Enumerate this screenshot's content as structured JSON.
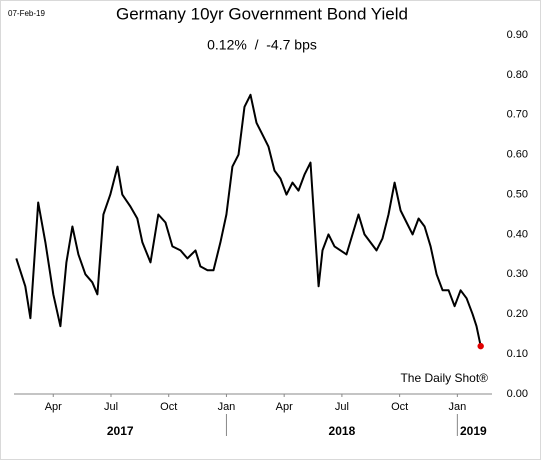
{
  "chart_data": {
    "type": "line",
    "date_stamp": "07-Feb-19",
    "title": "Germany 10yr Government Bond Yield",
    "subtitle": "0.12%  /  -4.7 bps",
    "source": "The Daily Shot®",
    "x": [
      2017.09,
      2017.129,
      2017.151,
      2017.185,
      2017.216,
      2017.237,
      2017.25,
      2017.281,
      2017.307,
      2017.333,
      2017.359,
      2017.389,
      2017.419,
      2017.441,
      2017.467,
      2017.497,
      2017.528,
      2017.549,
      2017.584,
      2017.614,
      2017.636,
      2017.671,
      2017.705,
      2017.736,
      2017.766,
      2017.801,
      2017.831,
      2017.866,
      2017.887,
      2017.918,
      2017.944,
      2017.974,
      2018.0,
      2018.026,
      2018.052,
      2018.078,
      2018.104,
      2018.13,
      2018.156,
      2018.182,
      2018.208,
      2018.234,
      2018.26,
      2018.286,
      2018.312,
      2018.338,
      2018.364,
      2018.39,
      2018.399,
      2018.416,
      2018.442,
      2018.468,
      2018.494,
      2018.52,
      2018.546,
      2018.572,
      2018.598,
      2018.624,
      2018.65,
      2018.676,
      2018.702,
      2018.728,
      2018.754,
      2018.78,
      2018.806,
      2018.832,
      2018.858,
      2018.884,
      2018.91,
      2018.936,
      2018.962,
      2018.988,
      2019.014,
      2019.04,
      2019.066,
      2019.083,
      2019.101
    ],
    "series": [
      {
        "name": "Germany 10yr",
        "color": "#000000",
        "last_point_color": "#e00000",
        "values": [
          0.34,
          0.27,
          0.19,
          0.48,
          0.38,
          0.3,
          0.25,
          0.17,
          0.33,
          0.42,
          0.35,
          0.3,
          0.28,
          0.25,
          0.45,
          0.5,
          0.57,
          0.5,
          0.47,
          0.44,
          0.38,
          0.33,
          0.45,
          0.43,
          0.37,
          0.36,
          0.34,
          0.36,
          0.32,
          0.31,
          0.31,
          0.38,
          0.45,
          0.57,
          0.6,
          0.72,
          0.75,
          0.68,
          0.65,
          0.62,
          0.56,
          0.54,
          0.5,
          0.53,
          0.51,
          0.55,
          0.58,
          0.35,
          0.27,
          0.36,
          0.4,
          0.37,
          0.36,
          0.35,
          0.4,
          0.45,
          0.4,
          0.38,
          0.36,
          0.39,
          0.45,
          0.53,
          0.46,
          0.43,
          0.4,
          0.44,
          0.42,
          0.37,
          0.3,
          0.26,
          0.26,
          0.22,
          0.26,
          0.24,
          0.2,
          0.17,
          0.12
        ]
      }
    ],
    "xlim": [
      2017.08,
      2019.15
    ],
    "xticks": [
      {
        "value": 2017.25,
        "label": "Apr"
      },
      {
        "value": 2017.5,
        "label": "Jul"
      },
      {
        "value": 2017.75,
        "label": "Oct"
      },
      {
        "value": 2018,
        "label": "Jan"
      },
      {
        "value": 2018.25,
        "label": "Apr"
      },
      {
        "value": 2018.5,
        "label": "Jul"
      },
      {
        "value": 2018.75,
        "label": "Oct"
      },
      {
        "value": 2019,
        "label": "Jan"
      }
    ],
    "year_ticks": [
      2017,
      2018,
      2019
    ],
    "ylim": [
      0,
      0.9
    ],
    "yticks": [
      {
        "value": 0,
        "label": "0.00"
      },
      {
        "value": 0.1,
        "label": "0.10"
      },
      {
        "value": 0.2,
        "label": "0.20"
      },
      {
        "value": 0.3,
        "label": "0.30"
      },
      {
        "value": 0.4,
        "label": "0.40"
      },
      {
        "value": 0.5,
        "label": "0.50"
      },
      {
        "value": 0.6,
        "label": "0.60"
      },
      {
        "value": 0.7,
        "label": "0.70"
      },
      {
        "value": 0.8,
        "label": "0.80"
      },
      {
        "value": 0.9,
        "label": "0.90"
      }
    ],
    "y_axis_side": "right",
    "grid": false
  }
}
